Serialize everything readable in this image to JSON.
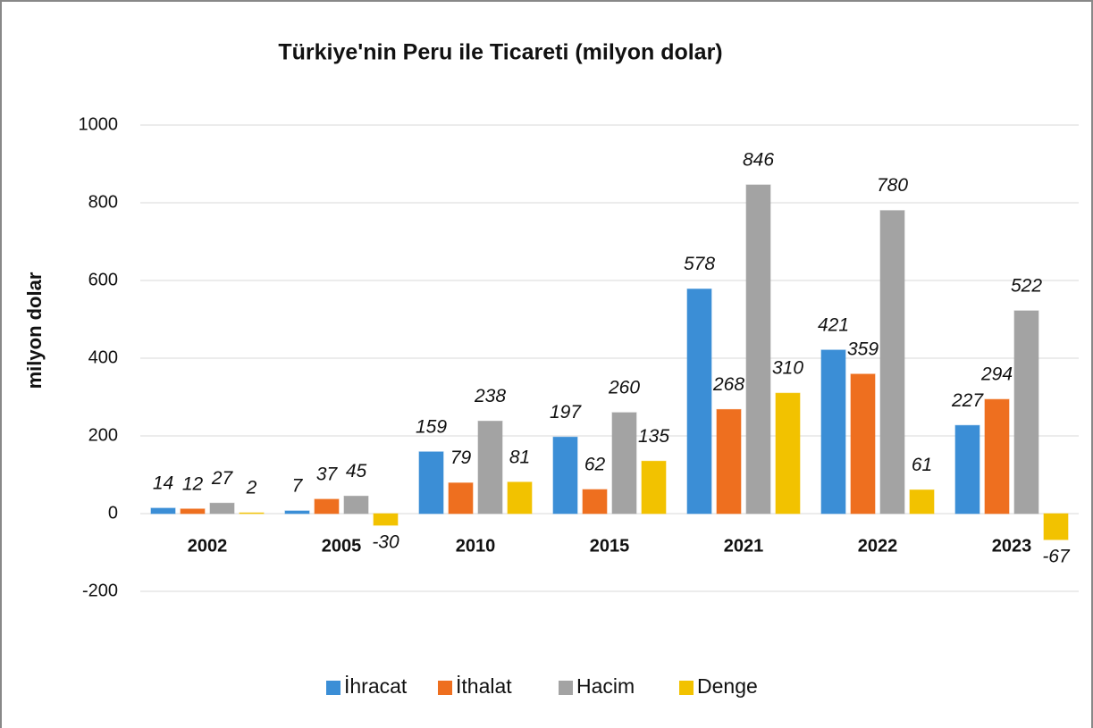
{
  "chart_data": {
    "type": "bar",
    "title": "Türkiye'nin Peru ile Ticareti (milyon dolar)",
    "y_label": "milyon dolar",
    "categories": [
      "2002",
      "2005",
      "2010",
      "2015",
      "2021",
      "2022",
      "2023"
    ],
    "series": [
      {
        "name": "İhracat",
        "color": "#3b8ed6",
        "values": [
          14,
          7,
          159,
          197,
          578,
          421,
          227
        ]
      },
      {
        "name": "İthalat",
        "color": "#ee6f1f",
        "values": [
          12,
          37,
          79,
          62,
          268,
          359,
          294
        ]
      },
      {
        "name": "Hacim",
        "color": "#a3a3a3",
        "values": [
          27,
          45,
          238,
          260,
          846,
          780,
          522
        ]
      },
      {
        "name": "Denge",
        "color": "#f2c200",
        "values": [
          2,
          -30,
          81,
          135,
          310,
          61,
          -67
        ]
      }
    ],
    "ylim": [
      -200,
      1000
    ],
    "yticks": [
      -200,
      0,
      200,
      400,
      600,
      800,
      1000
    ],
    "grid": true,
    "legend": "bottom"
  }
}
